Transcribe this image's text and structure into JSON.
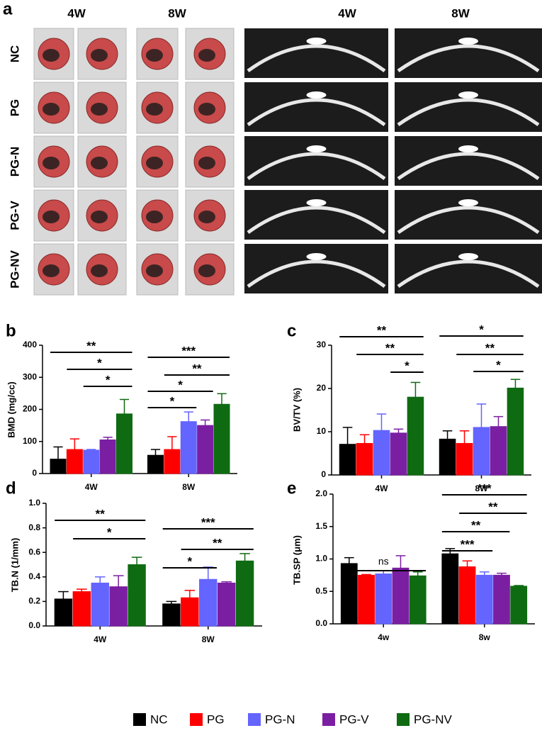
{
  "panel_a": {
    "label": "a",
    "columns": [
      "4W",
      "8W",
      "4W",
      "8W"
    ],
    "rows": [
      "NC",
      "PG",
      "PG-N",
      "PG-V",
      "PG-NV"
    ]
  },
  "chart_data": [
    {
      "type": "bar",
      "panel": "b",
      "y_label": "BMD (mg/cc)",
      "categories": [
        "4W",
        "8W"
      ],
      "series": [
        {
          "name": "NC",
          "color": "#000000",
          "values": [
            45,
            57
          ],
          "errors": [
            38,
            18
          ]
        },
        {
          "name": "PG",
          "color": "#ff0000",
          "values": [
            75,
            75
          ],
          "errors": [
            33,
            40
          ]
        },
        {
          "name": "PG-N",
          "color": "#6464ff",
          "values": [
            73,
            162
          ],
          "errors": [
            2,
            30
          ]
        },
        {
          "name": "PG-V",
          "color": "#7b1fa2",
          "values": [
            105,
            150
          ],
          "errors": [
            8,
            17
          ]
        },
        {
          "name": "PG-NV",
          "color": "#0f6b12",
          "values": [
            186,
            216
          ],
          "errors": [
            45,
            33
          ]
        }
      ],
      "ylim": [
        0,
        400
      ],
      "yticks": [
        0,
        100,
        200,
        300,
        400
      ],
      "annotations": [
        {
          "text": "**",
          "category": "4W",
          "from": "NC",
          "to": "PG-NV"
        },
        {
          "text": "*",
          "category": "4W",
          "from": "PG",
          "to": "PG-NV"
        },
        {
          "text": "*",
          "category": "4W",
          "from": "PG-N",
          "to": "PG-NV"
        },
        {
          "text": "***",
          "category": "8W",
          "from": "NC",
          "to": "PG-NV"
        },
        {
          "text": "**",
          "category": "8W",
          "from": "PG",
          "to": "PG-NV"
        },
        {
          "text": "*",
          "category": "8W",
          "from": "NC",
          "to": "PG-V"
        },
        {
          "text": "*",
          "category": "8W",
          "from": "NC",
          "to": "PG-N"
        }
      ]
    },
    {
      "type": "bar",
      "panel": "c",
      "y_label": "BV/TV (%)",
      "categories": [
        "4W",
        "8W"
      ],
      "series": [
        {
          "name": "NC",
          "color": "#000000",
          "values": [
            7.1,
            8.3
          ],
          "errors": [
            3.9,
            1.9
          ]
        },
        {
          "name": "PG",
          "color": "#ff0000",
          "values": [
            7.3,
            7.3
          ],
          "errors": [
            2,
            2.9
          ]
        },
        {
          "name": "PG-N",
          "color": "#6464ff",
          "values": [
            10.3,
            11
          ],
          "errors": [
            3.8,
            5.4
          ]
        },
        {
          "name": "PG-V",
          "color": "#7b1fa2",
          "values": [
            9.7,
            11.2
          ],
          "errors": [
            0.9,
            2.3
          ]
        },
        {
          "name": "PG-NV",
          "color": "#0f6b12",
          "values": [
            18,
            20.1
          ],
          "errors": [
            3.4,
            2
          ]
        }
      ],
      "ylim": [
        0,
        30
      ],
      "yticks": [
        0,
        10,
        20,
        30
      ],
      "annotations": [
        {
          "text": "**",
          "category": "4W",
          "from": "NC",
          "to": "PG-NV"
        },
        {
          "text": "**",
          "category": "4W",
          "from": "PG",
          "to": "PG-NV"
        },
        {
          "text": "*",
          "category": "4W",
          "from": "PG-V",
          "to": "PG-NV"
        },
        {
          "text": "*",
          "category": "8W",
          "from": "NC",
          "to": "PG-NV"
        },
        {
          "text": "**",
          "category": "8W",
          "from": "PG",
          "to": "PG-NV"
        },
        {
          "text": "*",
          "category": "8W",
          "from": "PG-N",
          "to": "PG-NV"
        }
      ]
    },
    {
      "type": "bar",
      "panel": "d",
      "y_label": "TB.N (1/mm)",
      "categories": [
        "4W",
        "8W"
      ],
      "series": [
        {
          "name": "NC",
          "color": "#000000",
          "values": [
            0.22,
            0.18
          ],
          "errors": [
            0.06,
            0.02
          ]
        },
        {
          "name": "PG",
          "color": "#ff0000",
          "values": [
            0.28,
            0.23
          ],
          "errors": [
            0.02,
            0.06
          ]
        },
        {
          "name": "PG-N",
          "color": "#6464ff",
          "values": [
            0.35,
            0.38
          ],
          "errors": [
            0.05,
            0.1
          ]
        },
        {
          "name": "PG-V",
          "color": "#7b1fa2",
          "values": [
            0.32,
            0.35
          ],
          "errors": [
            0.09,
            0.01
          ]
        },
        {
          "name": "PG-NV",
          "color": "#0f6b12",
          "values": [
            0.5,
            0.53
          ],
          "errors": [
            0.06,
            0.06
          ]
        }
      ],
      "ylim": [
        0,
        1
      ],
      "yticks": [
        {
          "value": 0,
          "label": "0.0"
        },
        0.2,
        0.4,
        0.6,
        0.8,
        {
          "value": 1,
          "label": "1.0"
        }
      ],
      "annotations": [
        {
          "text": "**",
          "category": "4W",
          "from": "NC",
          "to": "PG-NV"
        },
        {
          "text": "*",
          "category": "4W",
          "from": "PG",
          "to": "PG-NV"
        },
        {
          "text": "***",
          "category": "8W",
          "from": "NC",
          "to": "PG-NV"
        },
        {
          "text": "**",
          "category": "8W",
          "from": "PG",
          "to": "PG-NV"
        },
        {
          "text": "*",
          "category": "8W",
          "from": "NC",
          "to": "PG-N"
        }
      ]
    },
    {
      "type": "bar",
      "panel": "e",
      "y_label": "TB.SP (μm)",
      "categories": [
        "4w",
        "8w"
      ],
      "series": [
        {
          "name": "NC",
          "color": "#000000",
          "values": [
            0.93,
            1.08
          ],
          "errors": [
            0.09,
            0.08
          ]
        },
        {
          "name": "PG",
          "color": "#ff0000",
          "values": [
            0.75,
            0.88
          ],
          "errors": [
            0.01,
            0.09
          ]
        },
        {
          "name": "PG-N",
          "color": "#6464ff",
          "values": [
            0.77,
            0.75
          ],
          "errors": [
            0.05,
            0.05
          ]
        },
        {
          "name": "PG-V",
          "color": "#7b1fa2",
          "values": [
            0.86,
            0.75
          ],
          "errors": [
            0.19,
            0.03
          ]
        },
        {
          "name": "PG-NV",
          "color": "#0f6b12",
          "values": [
            0.74,
            0.58
          ],
          "errors": [
            0.06,
            0.01
          ]
        }
      ],
      "ylim": [
        0,
        2
      ],
      "yticks": [
        {
          "value": 0,
          "label": "0.0"
        },
        0.5,
        {
          "value": 1,
          "label": "1.0"
        },
        1.5,
        {
          "value": 2,
          "label": "2.0"
        }
      ],
      "annotations": [
        {
          "text": "ns",
          "category": "4w",
          "from": "NC",
          "to": "PG-NV"
        },
        {
          "text": "***",
          "category": "8w",
          "from": "NC",
          "to": "PG-NV"
        },
        {
          "text": "**",
          "category": "8w",
          "from": "PG",
          "to": "PG-NV"
        },
        {
          "text": "**",
          "category": "8w",
          "from": "NC",
          "to": "PG-V"
        },
        {
          "text": "***",
          "category": "8w",
          "from": "NC",
          "to": "PG-N"
        }
      ]
    }
  ]
}
